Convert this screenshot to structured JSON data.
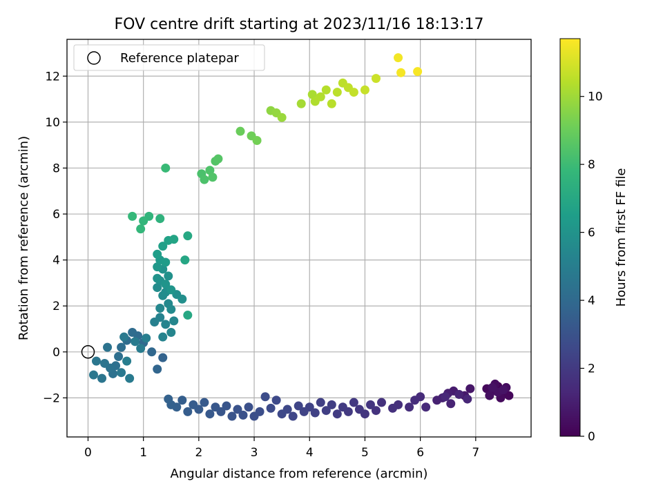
{
  "chart_data": {
    "type": "scatter",
    "title": "FOV centre drift starting at 2023/11/16 18:13:17",
    "xlabel": "Angular distance from reference (arcmin)",
    "ylabel": "Rotation from reference (arcmin)",
    "xlim": [
      -0.38,
      8.0
    ],
    "ylim": [
      -3.7,
      13.6
    ],
    "xticks": [
      0,
      1,
      2,
      3,
      4,
      5,
      6,
      7
    ],
    "yticks": [
      -2,
      0,
      2,
      4,
      6,
      8,
      10,
      12
    ],
    "xtick_labels": [
      "0",
      "1",
      "2",
      "3",
      "4",
      "5",
      "6",
      "7"
    ],
    "ytick_labels": [
      "−2",
      "0",
      "2",
      "4",
      "6",
      "8",
      "10",
      "12"
    ],
    "grid": true,
    "legend": {
      "placement": "top-left",
      "entries": [
        "Reference platepar"
      ]
    },
    "reference_point": {
      "x": 0,
      "y": 0,
      "label": "Reference platepar"
    },
    "colorbar": {
      "label": "Hours from first FF file",
      "range": [
        0,
        11.7
      ],
      "ticks": [
        0,
        2,
        4,
        6,
        8,
        10
      ],
      "tick_labels": [
        "0",
        "2",
        "4",
        "6",
        "8",
        "10"
      ],
      "colormap": "viridis"
    },
    "colormap_stops": [
      "#440154",
      "#482878",
      "#3e4989",
      "#31688e",
      "#26828e",
      "#1f9e89",
      "#35b779",
      "#6ece58",
      "#b5de2b",
      "#fde725"
    ],
    "point_color_value": "hours",
    "points": [
      [
        7.4,
        -1.5,
        0.05
      ],
      [
        7.5,
        -1.8,
        0.1
      ],
      [
        7.3,
        -1.7,
        0.15
      ],
      [
        7.6,
        -1.9,
        0.2
      ],
      [
        7.2,
        -1.6,
        0.25
      ],
      [
        7.45,
        -2.0,
        0.3
      ],
      [
        7.35,
        -1.4,
        0.35
      ],
      [
        7.55,
        -1.55,
        0.4
      ],
      [
        7.25,
        -1.9,
        0.45
      ],
      [
        7.4,
        -1.75,
        0.5
      ],
      [
        7.3,
        -1.55,
        0.55
      ],
      [
        7.5,
        -1.65,
        0.6
      ],
      [
        6.9,
        -1.6,
        0.7
      ],
      [
        6.8,
        -1.9,
        0.8
      ],
      [
        6.6,
        -1.7,
        0.9
      ],
      [
        6.5,
        -1.8,
        1.0
      ],
      [
        6.4,
        -2.0,
        1.05
      ],
      [
        6.3,
        -2.1,
        1.1
      ],
      [
        6.55,
        -2.25,
        1.15
      ],
      [
        6.7,
        -1.85,
        1.2
      ],
      [
        6.85,
        -2.05,
        1.25
      ],
      [
        6.45,
        -1.95,
        1.3
      ],
      [
        6.1,
        -2.4,
        1.4
      ],
      [
        6.0,
        -1.95,
        1.45
      ],
      [
        5.9,
        -2.1,
        1.5
      ],
      [
        5.8,
        -2.4,
        1.55
      ],
      [
        5.6,
        -2.3,
        1.6
      ],
      [
        5.5,
        -2.45,
        1.65
      ],
      [
        5.3,
        -2.2,
        1.7
      ],
      [
        5.2,
        -2.55,
        1.75
      ],
      [
        5.1,
        -2.3,
        1.8
      ],
      [
        5.0,
        -2.7,
        1.85
      ],
      [
        4.9,
        -2.5,
        1.9
      ],
      [
        4.8,
        -2.2,
        1.95
      ],
      [
        4.7,
        -2.6,
        2.0
      ],
      [
        4.6,
        -2.4,
        2.05
      ],
      [
        4.5,
        -2.7,
        2.1
      ],
      [
        4.4,
        -2.3,
        2.15
      ],
      [
        4.3,
        -2.55,
        2.2
      ],
      [
        4.2,
        -2.2,
        2.25
      ],
      [
        4.1,
        -2.65,
        2.3
      ],
      [
        4.0,
        -2.4,
        2.35
      ],
      [
        3.9,
        -2.6,
        2.4
      ],
      [
        3.8,
        -2.35,
        2.45
      ],
      [
        3.7,
        -2.8,
        2.5
      ],
      [
        3.6,
        -2.5,
        2.55
      ],
      [
        3.5,
        -2.7,
        2.6
      ],
      [
        3.4,
        -2.1,
        2.65
      ],
      [
        3.3,
        -2.45,
        2.7
      ],
      [
        3.2,
        -1.95,
        2.75
      ],
      [
        3.1,
        -2.6,
        2.8
      ],
      [
        3.0,
        -2.8,
        2.85
      ],
      [
        2.9,
        -2.4,
        2.9
      ],
      [
        2.8,
        -2.75,
        2.95
      ],
      [
        2.7,
        -2.5,
        3.0
      ],
      [
        2.6,
        -2.8,
        3.05
      ],
      [
        2.5,
        -2.35,
        3.1
      ],
      [
        2.4,
        -2.6,
        3.15
      ],
      [
        2.3,
        -2.4,
        3.2
      ],
      [
        2.2,
        -2.7,
        3.25
      ],
      [
        2.1,
        -2.2,
        3.3
      ],
      [
        2.0,
        -2.5,
        3.35
      ],
      [
        1.9,
        -2.3,
        3.4
      ],
      [
        1.8,
        -2.6,
        3.45
      ],
      [
        1.7,
        -2.1,
        3.5
      ],
      [
        1.6,
        -2.4,
        3.55
      ],
      [
        1.5,
        -2.3,
        3.6
      ],
      [
        1.45,
        -2.05,
        3.65
      ],
      [
        1.35,
        -0.25,
        3.7
      ],
      [
        1.25,
        -0.75,
        3.8
      ],
      [
        1.15,
        0.0,
        3.9
      ],
      [
        1.0,
        0.4,
        4.0
      ],
      [
        0.9,
        0.7,
        4.05
      ],
      [
        0.8,
        0.85,
        4.1
      ],
      [
        0.7,
        0.5,
        4.15
      ],
      [
        0.6,
        0.2,
        4.2
      ],
      [
        0.55,
        -0.2,
        4.25
      ],
      [
        0.5,
        -0.6,
        4.3
      ],
      [
        0.45,
        -0.95,
        4.35
      ],
      [
        0.4,
        -0.7,
        4.4
      ],
      [
        0.35,
        0.2,
        4.45
      ],
      [
        0.3,
        -0.5,
        4.5
      ],
      [
        0.25,
        -1.15,
        4.55
      ],
      [
        0.15,
        -0.4,
        4.6
      ],
      [
        0.1,
        -1.0,
        4.65
      ],
      [
        0.6,
        -0.9,
        4.7
      ],
      [
        0.65,
        0.65,
        4.75
      ],
      [
        0.75,
        -1.15,
        4.8
      ],
      [
        0.85,
        0.45,
        4.85
      ],
      [
        0.95,
        0.15,
        4.9
      ],
      [
        0.7,
        -0.4,
        4.95
      ],
      [
        1.05,
        0.6,
        5.0
      ],
      [
        1.2,
        1.3,
        5.1
      ],
      [
        1.3,
        1.5,
        5.2
      ],
      [
        1.35,
        0.65,
        5.25
      ],
      [
        1.4,
        1.2,
        5.3
      ],
      [
        1.5,
        0.85,
        5.35
      ],
      [
        1.55,
        1.35,
        5.4
      ],
      [
        1.3,
        1.9,
        5.45
      ],
      [
        1.45,
        2.1,
        5.5
      ],
      [
        1.5,
        1.85,
        5.55
      ],
      [
        1.35,
        2.45,
        5.6
      ],
      [
        1.25,
        2.8,
        5.65
      ],
      [
        1.4,
        2.6,
        5.7
      ],
      [
        1.6,
        2.5,
        5.75
      ],
      [
        1.7,
        2.3,
        5.8
      ],
      [
        1.3,
        3.1,
        5.85
      ],
      [
        1.45,
        3.3,
        5.9
      ],
      [
        1.35,
        3.6,
        5.95
      ],
      [
        1.25,
        3.2,
        6.0
      ],
      [
        1.4,
        2.95,
        6.05
      ],
      [
        1.5,
        2.7,
        6.1
      ],
      [
        1.25,
        3.7,
        6.2
      ],
      [
        1.3,
        4.0,
        6.3
      ],
      [
        1.4,
        3.9,
        6.4
      ],
      [
        1.25,
        4.25,
        6.5
      ],
      [
        1.35,
        4.6,
        6.6
      ],
      [
        1.45,
        4.85,
        6.7
      ],
      [
        1.55,
        4.9,
        6.8
      ],
      [
        1.75,
        4.0,
        6.9
      ],
      [
        1.8,
        1.6,
        6.95
      ],
      [
        1.8,
        5.05,
        7.0
      ],
      [
        1.3,
        5.8,
        7.5
      ],
      [
        1.1,
        5.9,
        7.6
      ],
      [
        1.0,
        5.7,
        7.7
      ],
      [
        0.95,
        5.35,
        7.75
      ],
      [
        0.8,
        5.9,
        7.8
      ],
      [
        1.4,
        8.0,
        7.9
      ],
      [
        2.05,
        7.75,
        8.3
      ],
      [
        2.1,
        7.5,
        8.35
      ],
      [
        2.2,
        7.9,
        8.4
      ],
      [
        2.25,
        7.6,
        8.45
      ],
      [
        2.3,
        8.3,
        8.5
      ],
      [
        2.35,
        8.4,
        8.55
      ],
      [
        2.75,
        9.6,
        9.0
      ],
      [
        2.95,
        9.4,
        9.1
      ],
      [
        3.05,
        9.2,
        9.2
      ],
      [
        3.3,
        10.5,
        9.7
      ],
      [
        3.4,
        10.4,
        9.8
      ],
      [
        3.5,
        10.2,
        9.9
      ],
      [
        3.85,
        10.8,
        10.1
      ],
      [
        4.05,
        11.2,
        10.2
      ],
      [
        4.1,
        10.9,
        10.3
      ],
      [
        4.2,
        11.1,
        10.35
      ],
      [
        4.3,
        11.4,
        10.4
      ],
      [
        4.4,
        10.8,
        10.45
      ],
      [
        4.5,
        11.3,
        10.5
      ],
      [
        4.6,
        11.7,
        10.55
      ],
      [
        4.7,
        11.5,
        10.6
      ],
      [
        4.8,
        11.3,
        10.65
      ],
      [
        5.0,
        11.4,
        10.7
      ],
      [
        5.2,
        11.9,
        10.8
      ],
      [
        5.6,
        12.8,
        11.5
      ],
      [
        5.65,
        12.15,
        11.55
      ],
      [
        5.95,
        12.2,
        11.6
      ]
    ]
  }
}
